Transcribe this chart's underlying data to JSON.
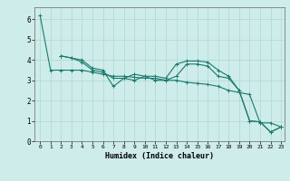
{
  "xlabel": "Humidex (Indice chaleur)",
  "ylabel": "",
  "background_color": "#ceecea",
  "grid_color": "#aed8d4",
  "line_color": "#1a7a6e",
  "xlim": [
    -0.5,
    23.3
  ],
  "ylim": [
    0,
    6.6
  ],
  "xticks": [
    0,
    1,
    2,
    3,
    4,
    5,
    6,
    7,
    8,
    9,
    10,
    11,
    12,
    13,
    14,
    15,
    16,
    17,
    18,
    19,
    20,
    21,
    22,
    23
  ],
  "yticks": [
    0,
    1,
    2,
    3,
    4,
    5,
    6
  ],
  "series": {
    "line1": {
      "x": [
        0,
        1,
        2,
        3,
        4,
        5,
        6,
        7,
        8,
        9,
        10,
        11,
        12,
        13,
        14,
        15,
        16,
        17,
        18,
        19,
        20,
        21,
        22,
        23
      ],
      "y": [
        6.2,
        3.5,
        3.5,
        3.5,
        3.5,
        3.4,
        3.3,
        3.2,
        3.2,
        3.15,
        3.1,
        3.1,
        3.0,
        3.0,
        2.9,
        2.85,
        2.8,
        2.7,
        2.5,
        2.4,
        2.3,
        0.9,
        0.9,
        0.7
      ]
    },
    "line2": {
      "x": [
        2,
        3,
        4,
        5,
        6,
        7,
        8,
        9,
        10,
        11,
        12,
        13,
        14,
        15,
        16,
        17,
        18,
        19,
        20,
        21,
        22,
        23
      ],
      "y": [
        4.2,
        4.1,
        4.0,
        3.6,
        3.5,
        2.7,
        3.1,
        3.3,
        3.2,
        3.2,
        3.1,
        3.8,
        3.95,
        3.95,
        3.9,
        3.5,
        3.2,
        2.5,
        1.0,
        0.95,
        0.45,
        0.7
      ]
    },
    "line3": {
      "x": [
        2,
        3,
        4,
        5,
        6,
        7,
        8,
        9,
        10,
        11,
        12,
        13,
        14,
        15,
        16,
        17,
        18,
        19,
        20,
        21,
        22,
        23
      ],
      "y": [
        4.2,
        4.1,
        3.9,
        3.5,
        3.4,
        3.1,
        3.1,
        3.0,
        3.2,
        3.0,
        3.0,
        3.2,
        3.8,
        3.8,
        3.7,
        3.2,
        3.1,
        2.5,
        1.0,
        0.95,
        0.45,
        0.7
      ]
    }
  }
}
